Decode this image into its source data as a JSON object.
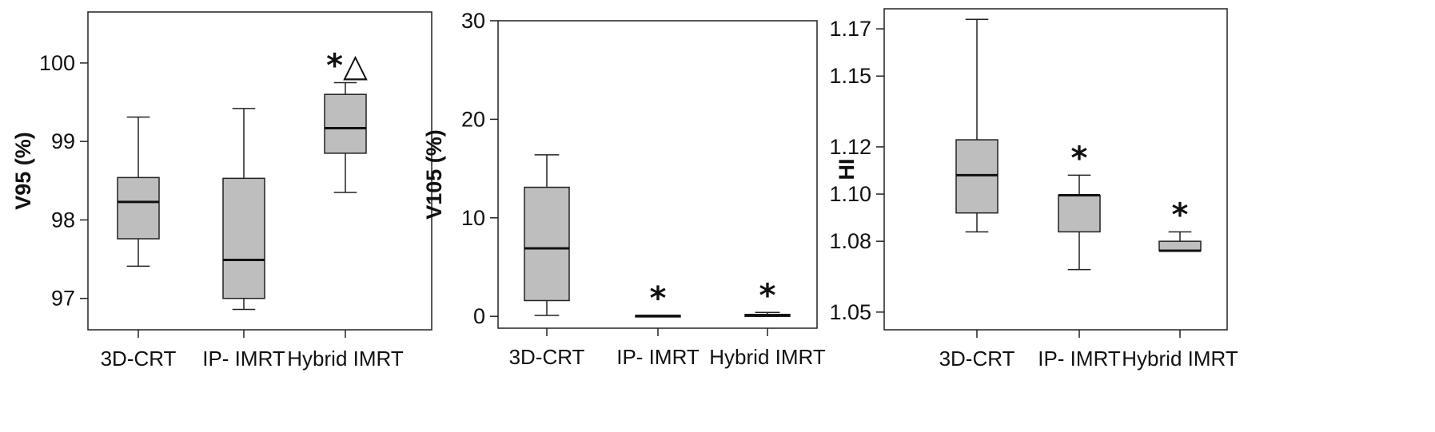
{
  "chart_data": [
    {
      "type": "boxplot",
      "ylabel": "V95 (%)",
      "ylim": [
        96.6,
        100.65
      ],
      "yticks": [
        97,
        98,
        99,
        100
      ],
      "categories": [
        "3D-CRT",
        "IP- IMRT",
        "Hybrid IMRT"
      ],
      "boxes": [
        {
          "category": "3D-CRT",
          "whisker_low": 97.41,
          "q1": 97.76,
          "median": 98.23,
          "q3": 98.54,
          "whisker_high": 99.31,
          "annotation": ""
        },
        {
          "category": "IP- IMRT",
          "whisker_low": 96.86,
          "q1": 97.0,
          "median": 97.49,
          "q3": 98.53,
          "whisker_high": 99.42,
          "annotation": ""
        },
        {
          "category": "Hybrid IMRT",
          "whisker_low": 98.35,
          "q1": 98.85,
          "median": 99.17,
          "q3": 99.6,
          "whisker_high": 99.75,
          "annotation": "*△"
        }
      ]
    },
    {
      "type": "boxplot",
      "ylabel": "V105 (%)",
      "ylim": [
        -1.2,
        30.0
      ],
      "yticks": [
        0,
        10,
        20,
        30
      ],
      "categories": [
        "3D-CRT",
        "IP- IMRT",
        "Hybrid IMRT"
      ],
      "boxes": [
        {
          "category": "3D-CRT",
          "whisker_low": 0.1,
          "q1": 1.6,
          "median": 6.9,
          "q3": 13.1,
          "whisker_high": 16.4,
          "annotation": ""
        },
        {
          "category": "IP- IMRT",
          "whisker_low": 0.0,
          "q1": 0.0,
          "median": 0.05,
          "q3": 0.1,
          "whisker_high": 0.1,
          "annotation": "*"
        },
        {
          "category": "Hybrid IMRT",
          "whisker_low": 0.0,
          "q1": 0.0,
          "median": 0.1,
          "q3": 0.2,
          "whisker_high": 0.4,
          "annotation": "*"
        }
      ]
    },
    {
      "type": "boxplot",
      "ylabel": "HI",
      "ylim": [
        1.0425,
        1.1785
      ],
      "yticks": [
        1.05,
        1.08,
        1.1,
        1.12,
        1.15,
        1.17
      ],
      "ytick_labels": [
        "1.05",
        "1.08",
        "1.10",
        "1.12",
        "1.15",
        "1.17"
      ],
      "categories": [
        "3D-CRT",
        "IP- IMRT",
        "Hybrid IMRT"
      ],
      "boxes": [
        {
          "category": "3D-CRT",
          "whisker_low": 1.084,
          "q1": 1.092,
          "median": 1.108,
          "q3": 1.123,
          "whisker_high": 1.174,
          "annotation": ""
        },
        {
          "category": "IP- IMRT",
          "whisker_low": 1.068,
          "q1": 1.084,
          "median": 1.0995,
          "q3": 1.0995,
          "whisker_high": 1.108,
          "annotation": "*"
        },
        {
          "category": "Hybrid IMRT",
          "whisker_low": 1.076,
          "q1": 1.076,
          "median": 1.076,
          "q3": 1.08,
          "whisker_high": 1.084,
          "annotation": "*"
        }
      ]
    }
  ]
}
